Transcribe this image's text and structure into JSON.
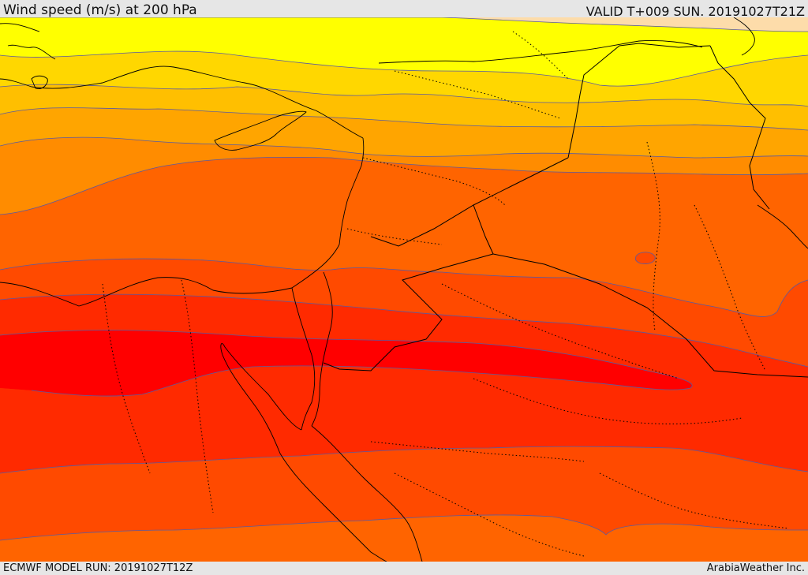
{
  "header": {
    "title": "Wind speed (m/s) at 200 hPa",
    "valid_time": "VALID T+009 SUN. 20191027T21Z"
  },
  "footer": {
    "model_run": "ECMWF MODEL RUN: 20191027T12Z",
    "credit": "ArabiaWeather Inc."
  },
  "map": {
    "field": "wind-speed",
    "palette": [
      "#fddcaa",
      "#ffff00",
      "#ffd700",
      "#ffbf00",
      "#ffa500",
      "#ff8c00",
      "#ff6400",
      "#ff4a00",
      "#ff2a00",
      "#ff0000"
    ],
    "contour_color": "#5a5aa0",
    "border_color": "#000000"
  }
}
